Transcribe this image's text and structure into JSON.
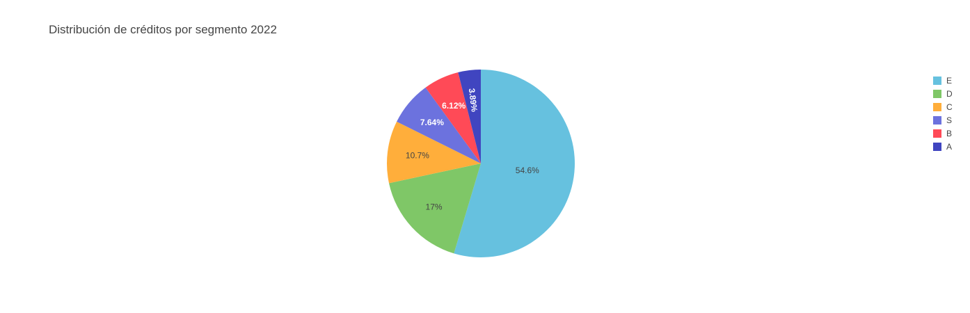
{
  "chart_data": {
    "type": "pie",
    "title": "Distribución de créditos por segmento 2022",
    "categories": [
      "E",
      "D",
      "C",
      "S",
      "B",
      "A"
    ],
    "values": [
      54.6,
      17,
      10.7,
      7.64,
      6.12,
      3.89
    ],
    "value_labels": [
      "54.6%",
      "17%",
      "10.7%",
      "7.64%",
      "6.12%",
      "3.89%"
    ],
    "colors": [
      "#66C1DF",
      "#7FC767",
      "#FFAE3B",
      "#6C72DE",
      "#FF4A57",
      "#4045C0"
    ],
    "label_colors": [
      "#444444",
      "#444444",
      "#444444",
      "#ffffff",
      "#ffffff",
      "#ffffff"
    ],
    "direction": "clockwise",
    "start_angle_deg": 0,
    "legend_position": "right"
  }
}
